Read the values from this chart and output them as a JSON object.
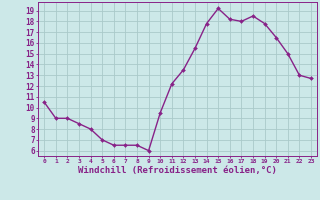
{
  "x": [
    0,
    1,
    2,
    3,
    4,
    5,
    6,
    7,
    8,
    9,
    10,
    11,
    12,
    13,
    14,
    15,
    16,
    17,
    18,
    19,
    20,
    21,
    22,
    23
  ],
  "y": [
    10.5,
    9.0,
    9.0,
    8.5,
    8.0,
    7.0,
    6.5,
    6.5,
    6.5,
    6.0,
    9.5,
    12.2,
    13.5,
    15.5,
    17.8,
    19.2,
    18.2,
    18.0,
    18.5,
    17.8,
    16.5,
    15.0,
    13.0,
    12.7
  ],
  "line_color": "#882288",
  "marker": "D",
  "marker_size": 2.0,
  "bg_color": "#cce8e8",
  "grid_color": "#aacaca",
  "tick_color": "#882288",
  "xlabel": "Windchill (Refroidissement éolien,°C)",
  "xlabel_fontsize": 6.5,
  "ylabel_ticks": [
    6,
    7,
    8,
    9,
    10,
    11,
    12,
    13,
    14,
    15,
    16,
    17,
    18,
    19
  ],
  "xlim": [
    -0.5,
    23.5
  ],
  "ylim": [
    5.5,
    19.8
  ],
  "figsize": [
    3.2,
    2.0
  ],
  "dpi": 100
}
